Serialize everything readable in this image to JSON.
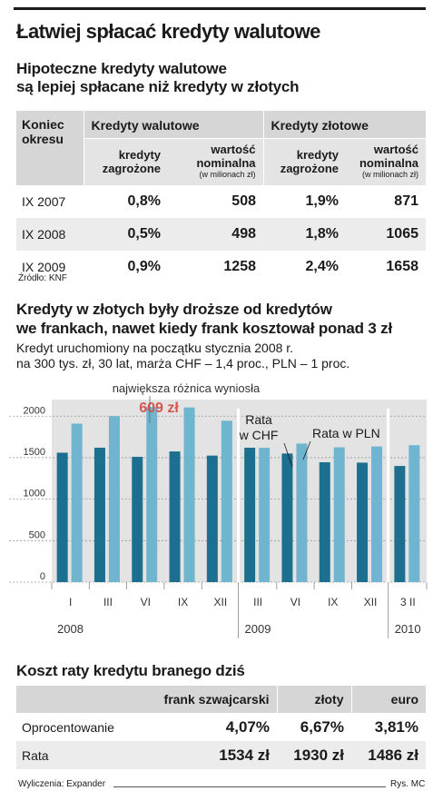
{
  "header": {
    "title": "Łatwiej spłacać kredyty walutowe",
    "section1_title_line1": "Hipoteczne kredyty walutowe",
    "section1_title_line2": "są lepiej spłacane niż kredyty w złotych"
  },
  "table1": {
    "col_period": "Koniec okresu",
    "group_fx": "Kredyty walutowe",
    "group_pln": "Kredyty złotowe",
    "sub_at_risk": "kredyty zagrożone",
    "sub_nominal": "wartość nominalna",
    "sub_nominal_unit": "(w milionach zł)",
    "rows": [
      {
        "period": "IX 2007",
        "fx_risk": "0,8%",
        "fx_nom": "508",
        "pln_risk": "1,9%",
        "pln_nom": "871"
      },
      {
        "period": "IX 2008",
        "fx_risk": "0,5%",
        "fx_nom": "498",
        "pln_risk": "1,8%",
        "pln_nom": "1065"
      },
      {
        "period": "IX 2009",
        "fx_risk": "0,9%",
        "fx_nom": "1258",
        "pln_risk": "2,4%",
        "pln_nom": "1658"
      }
    ],
    "source": "Źródło: KNF"
  },
  "section2": {
    "title_line1": "Kredyty w złotych były droższe od kredytów",
    "title_line2": "we frankach, nawet kiedy frank kosztował ponad 3 zł",
    "note_line1": "Kredyt uruchomiony na początku stycznia 2008 r.",
    "note_line2": "na 300 tys. zł, 30 lat, marża CHF – 1,4 proc., PLN – 1 proc."
  },
  "chart_data": {
    "type": "bar",
    "categories": [
      "I",
      "III",
      "VI",
      "IX",
      "XII",
      "III",
      "VI",
      "IX",
      "XII",
      "3 II"
    ],
    "years": [
      {
        "label": "2008",
        "from": 0,
        "to": 4
      },
      {
        "label": "2009",
        "from": 5,
        "to": 8
      },
      {
        "label": "2010",
        "from": 9,
        "to": 9
      }
    ],
    "series": [
      {
        "name": "Rata w CHF",
        "color": "#1d6f8f",
        "values": [
          1560,
          1620,
          1510,
          1575,
          1525,
          1620,
          1550,
          1445,
          1440,
          1400
        ]
      },
      {
        "name": "Rata w PLN",
        "color": "#6fb5cf",
        "values": [
          1910,
          2000,
          2110,
          2105,
          1945,
          1620,
          1670,
          1625,
          1635,
          1650
        ]
      }
    ],
    "yticks": [
      0,
      500,
      1000,
      1500,
      2000
    ],
    "ylim": [
      0,
      2200
    ],
    "annotation_text": "największa różnica wyniosła",
    "annotation_value": "609 zł",
    "annotation_color": "#d9534f",
    "background": "#e3e3e3"
  },
  "table2": {
    "title": "Koszt raty kredytu branego dziś",
    "headers": [
      "",
      "frank szwajcarski",
      "złoty",
      "euro"
    ],
    "rows": [
      {
        "label": "Oprocentowanie",
        "chf": "4,07%",
        "pln": "6,67%",
        "eur": "3,81%"
      },
      {
        "label": "Rata",
        "chf": "1534 zł",
        "pln": "1930 zł",
        "eur": "1486 zł"
      }
    ]
  },
  "footer": {
    "calc": "Wyliczenia: Expander",
    "credit": "Rys. MC"
  }
}
